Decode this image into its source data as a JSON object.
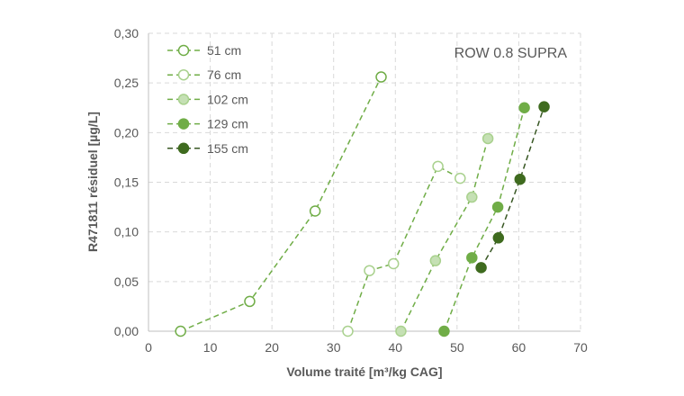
{
  "chart_data": {
    "type": "scatter",
    "annotation": "ROW 0.8 SUPRA",
    "xlabel": "Volume traité [m³/kg CAG]",
    "ylabel": "R471811 résiduel [µg/L]",
    "xlim": [
      0,
      70
    ],
    "ylim": [
      0,
      0.3
    ],
    "x_ticks": [
      0,
      10,
      20,
      30,
      40,
      50,
      60,
      70
    ],
    "y_ticks": [
      0.0,
      0.05,
      0.1,
      0.15,
      0.2,
      0.25,
      0.3
    ],
    "x_tick_labels": [
      "0",
      "10",
      "20",
      "30",
      "40",
      "50",
      "60",
      "70"
    ],
    "y_tick_labels": [
      "0,00",
      "0,05",
      "0,10",
      "0,15",
      "0,20",
      "0,25",
      "0,30"
    ],
    "grid": true,
    "legend_position": "top-left",
    "series": [
      {
        "name": "51 cm",
        "line_color": "#70ad47",
        "marker_fill": "#ffffff",
        "marker_stroke": "#70ad47",
        "points": [
          [
            5.2,
            0.0
          ],
          [
            16.4,
            0.03
          ],
          [
            27.0,
            0.121
          ],
          [
            37.7,
            0.256
          ]
        ]
      },
      {
        "name": "76 cm",
        "line_color": "#70ad47",
        "marker_fill": "#ffffff",
        "marker_stroke": "#a9d18e",
        "points": [
          [
            32.3,
            0.0
          ],
          [
            35.8,
            0.061
          ],
          [
            39.7,
            0.068
          ],
          [
            46.9,
            0.166
          ],
          [
            50.5,
            0.154
          ]
        ]
      },
      {
        "name": "102 cm",
        "line_color": "#70ad47",
        "marker_fill": "#c5e0b4",
        "marker_stroke": "#a9d18e",
        "points": [
          [
            40.9,
            0.0
          ],
          [
            46.5,
            0.071
          ],
          [
            52.4,
            0.135
          ],
          [
            55.0,
            0.194
          ]
        ]
      },
      {
        "name": "129 cm",
        "line_color": "#70ad47",
        "marker_fill": "#70ad47",
        "marker_stroke": "#70ad47",
        "points": [
          [
            47.9,
            0.0
          ],
          [
            52.4,
            0.074
          ],
          [
            56.6,
            0.125
          ],
          [
            60.9,
            0.225
          ]
        ]
      },
      {
        "name": "155 cm",
        "line_color": "#385723",
        "marker_fill": "#3f6b1f",
        "marker_stroke": "#3f6b1f",
        "points": [
          [
            53.9,
            0.064
          ],
          [
            56.7,
            0.094
          ],
          [
            60.2,
            0.153
          ],
          [
            64.1,
            0.226
          ]
        ]
      }
    ]
  }
}
